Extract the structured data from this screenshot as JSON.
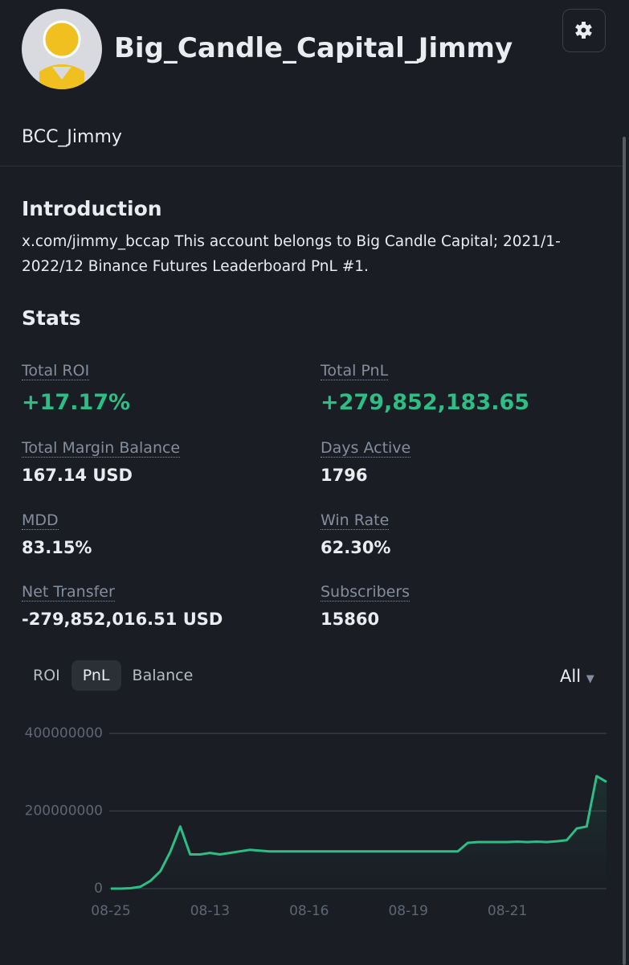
{
  "header": {
    "name": "Big_Candle_Capital_Jimmy",
    "handle": "BCC_Jimmy"
  },
  "introduction": {
    "title": "Introduction",
    "text": "x.com/jimmy_bccap This account belongs to Big Candle Capital; 2021/1-2022/12 Binance Futures Leaderboard PnL #1."
  },
  "stats": {
    "title": "Stats",
    "items": [
      {
        "label": "Total ROI",
        "value": "+17.17%"
      },
      {
        "label": "Total PnL",
        "value": "+279,852,183.65"
      },
      {
        "label": "Total Margin Balance",
        "value": "167.14 USD"
      },
      {
        "label": "Days Active",
        "value": "1796"
      },
      {
        "label": "MDD",
        "value": "83.15%"
      },
      {
        "label": "Win Rate",
        "value": "62.30%"
      },
      {
        "label": "Net Transfer",
        "value": "-279,852,016.51 USD"
      },
      {
        "label": "Subscribers",
        "value": "15860"
      }
    ]
  },
  "tabs": [
    "ROI",
    "PnL",
    "Balance"
  ],
  "range": "All",
  "chart_data": {
    "type": "line",
    "categories": [
      "08-25",
      null,
      null,
      null,
      null,
      null,
      null,
      null,
      null,
      null,
      "08-13",
      null,
      null,
      null,
      null,
      null,
      null,
      null,
      null,
      null,
      "08-16",
      null,
      null,
      null,
      null,
      null,
      null,
      null,
      null,
      null,
      "08-19",
      null,
      null,
      null,
      null,
      null,
      null,
      null,
      null,
      null,
      "08-21",
      null,
      null,
      null,
      null,
      null,
      null,
      null,
      null,
      null,
      null
    ],
    "series": [
      {
        "color": "#2ebd85",
        "values": [
          0,
          0,
          1000000,
          5000000,
          20000000,
          45000000,
          95000000,
          160000000,
          88000000,
          88000000,
          92000000,
          88000000,
          92000000,
          96000000,
          100000000,
          98000000,
          96000000,
          96000000,
          96000000,
          96000000,
          96000000,
          96000000,
          96000000,
          96000000,
          96000000,
          96000000,
          96000000,
          96000000,
          96000000,
          96000000,
          96000000,
          96000000,
          96000000,
          96000000,
          96000000,
          96000000,
          118000000,
          120000000,
          120000000,
          120000000,
          120000000,
          121000000,
          120000000,
          121000000,
          120000000,
          122000000,
          125000000,
          155000000,
          160000000,
          290000000,
          275000000
        ]
      }
    ],
    "ylim": [
      0,
      400000000
    ],
    "yticks": [
      0,
      200000000,
      400000000
    ],
    "grid": true
  }
}
